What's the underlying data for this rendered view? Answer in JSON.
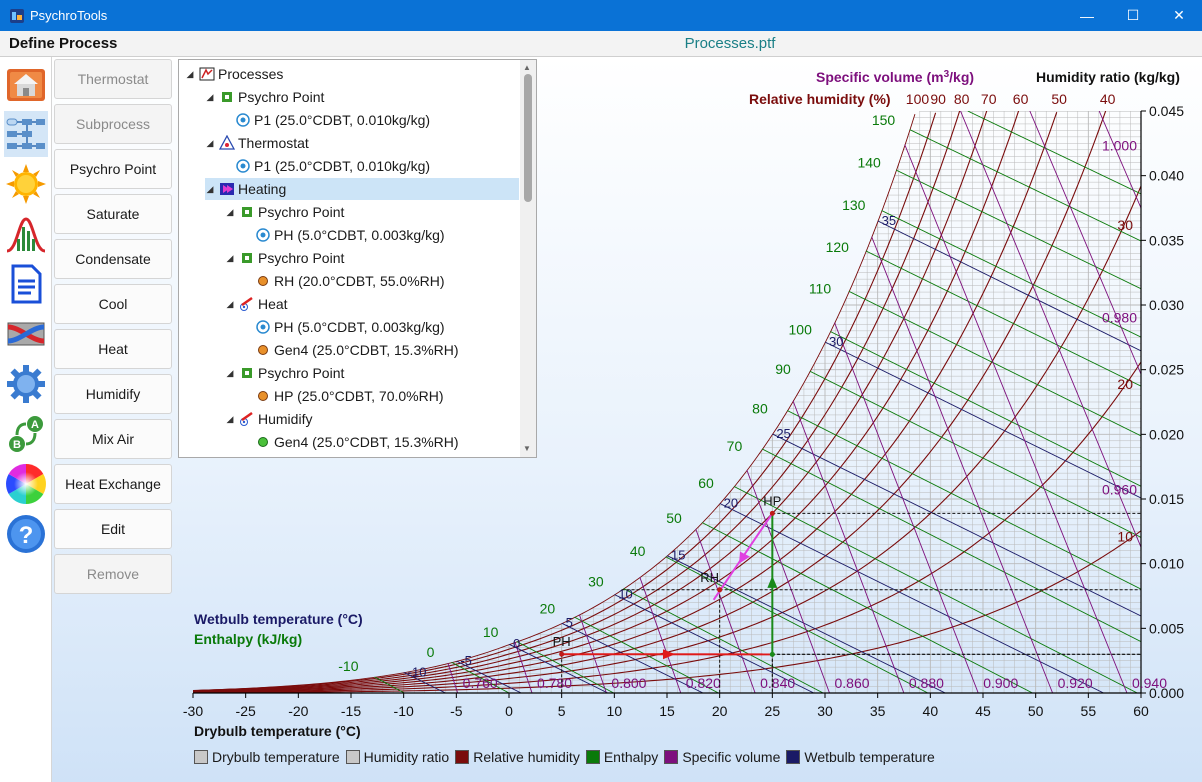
{
  "window": {
    "title": "PsychroTools",
    "minimize": "—",
    "maximize": "☐",
    "close": "✕"
  },
  "header": {
    "process_title": "Define Process",
    "file_name": "Processes.ptf"
  },
  "sidebar": {
    "items": [
      "house-icon",
      "process-flow-icon",
      "sun-icon",
      "distribution-icon",
      "document-icon",
      "heat-exchanger-icon",
      "gear-icon",
      "ab-convert-icon",
      "color-wheel-icon",
      "help-icon"
    ]
  },
  "buttons": [
    {
      "label": "Thermostat",
      "enabled": false
    },
    {
      "label": "Subprocess",
      "enabled": false
    },
    {
      "label": "Psychro Point",
      "enabled": true
    },
    {
      "label": "Saturate",
      "enabled": true
    },
    {
      "label": "Condensate",
      "enabled": true
    },
    {
      "label": "Cool",
      "enabled": true
    },
    {
      "label": "Heat",
      "enabled": true
    },
    {
      "label": "Humidify",
      "enabled": true
    },
    {
      "label": "Mix Air",
      "enabled": true
    },
    {
      "label": "Heat Exchange",
      "enabled": true
    },
    {
      "label": "Edit",
      "enabled": true
    },
    {
      "label": "Remove",
      "enabled": false
    }
  ],
  "tree": [
    {
      "label": "Processes",
      "icon": "processes-icon",
      "level": 0,
      "expanded": true
    },
    {
      "label": "Psychro Point",
      "icon": "psychro-point-icon",
      "level": 1,
      "expanded": true
    },
    {
      "label": "P1 (25.0°CDBT, 0.010kg/kg)",
      "icon": "point-target-icon",
      "level": 2
    },
    {
      "label": "Thermostat",
      "icon": "thermostat-icon",
      "level": 1,
      "expanded": true
    },
    {
      "label": "P1 (25.0°CDBT, 0.010kg/kg)",
      "icon": "point-target-icon",
      "level": 2
    },
    {
      "label": "Heating",
      "icon": "subprocess-icon",
      "level": 1,
      "expanded": true,
      "selected": true
    },
    {
      "label": "Psychro Point",
      "icon": "psychro-point-icon",
      "level": 2,
      "expanded": true
    },
    {
      "label": "PH (5.0°CDBT, 0.003kg/kg)",
      "icon": "point-target-icon",
      "level": 3
    },
    {
      "label": "Psychro Point",
      "icon": "psychro-point-icon",
      "level": 2,
      "expanded": true
    },
    {
      "label": "RH (20.0°CDBT, 55.0%RH)",
      "icon": "point-orange-icon",
      "level": 3
    },
    {
      "label": "Heat",
      "icon": "heat-process-icon",
      "level": 2,
      "expanded": true
    },
    {
      "label": "PH (5.0°CDBT, 0.003kg/kg)",
      "icon": "point-target-icon",
      "level": 3
    },
    {
      "label": "Gen4 (25.0°CDBT, 15.3%RH)",
      "icon": "point-orange-icon",
      "level": 3
    },
    {
      "label": "Psychro Point",
      "icon": "psychro-point-icon",
      "level": 2,
      "expanded": true
    },
    {
      "label": "HP (25.0°CDBT, 70.0%RH)",
      "icon": "point-orange-icon",
      "level": 3
    },
    {
      "label": "Humidify",
      "icon": "heat-process-icon",
      "level": 2,
      "expanded": true
    },
    {
      "label": "Gen4 (25.0°CDBT, 15.3%RH)",
      "icon": "point-green-icon",
      "level": 3
    }
  ],
  "chart": {
    "specific_volume_label": "Specific volume (m",
    "specific_volume_sup": "3",
    "specific_volume_suffix": "/kg)",
    "humidity_ratio_label": "Humidity ratio (kg/kg)",
    "relative_humidity_label": "Relative humidity (%)",
    "wetbulb_label": "Wetbulb temperature (°C)",
    "enthalpy_label": "Enthalpy (kJ/kg)",
    "drybulb_label": "Drybulb temperature (°C)",
    "colors": {
      "drybulb": "#c8c8c8",
      "humidity": "#c8c8c8",
      "rh": "#7a0c0c",
      "enthalpy": "#0a7a0a",
      "volume": "#7d0f7d",
      "wetbulb": "#1a1a66"
    }
  },
  "chart_data": {
    "type": "psychrometric",
    "x_axis": {
      "label": "Drybulb temperature (°C)",
      "range": [
        -30,
        60
      ],
      "ticks": [
        -30,
        -25,
        -20,
        -15,
        -10,
        -5,
        0,
        5,
        10,
        15,
        20,
        25,
        30,
        35,
        40,
        45,
        50,
        55,
        60
      ]
    },
    "y_axis": {
      "label": "Humidity ratio (kg/kg)",
      "range": [
        0,
        0.045
      ],
      "ticks": [
        "0.000",
        "0.005",
        "0.010",
        "0.015",
        "0.020",
        "0.025",
        "0.030",
        "0.035",
        "0.040",
        "0.045"
      ]
    },
    "relative_humidity_top_labels": [
      100,
      90,
      80,
      70,
      60,
      50,
      40
    ],
    "relative_humidity_right_labels": [
      30,
      20,
      10
    ],
    "enthalpy_labels": [
      -10,
      0,
      10,
      20,
      30,
      40,
      50,
      60,
      70,
      80,
      90,
      100,
      110,
      120,
      130,
      140,
      150
    ],
    "wetbulb_labels": [
      -10,
      -5,
      0,
      5,
      10,
      15,
      20,
      25,
      30,
      35
    ],
    "specific_volume_bottom_labels": [
      "0.760",
      "0.780",
      "0.800",
      "0.820",
      "0.840",
      "0.860",
      "0.880",
      "0.900",
      "0.920",
      "0.940"
    ],
    "specific_volume_right_labels": [
      "1.000",
      "0.980",
      "0.960"
    ],
    "points": [
      {
        "name": "PH",
        "drybulb": 5.0,
        "humidity": 0.003
      },
      {
        "name": "RH",
        "drybulb": 20.0,
        "rh": 55.0
      },
      {
        "name": "HP",
        "drybulb": 25.0,
        "rh": 70.0
      },
      {
        "name": "Gen4",
        "drybulb": 25.0,
        "rh": 15.3
      }
    ],
    "legend": [
      "Drybulb temperature",
      "Humidity ratio",
      "Relative humidity",
      "Enthalpy",
      "Specific volume",
      "Wetbulb temperature"
    ]
  }
}
